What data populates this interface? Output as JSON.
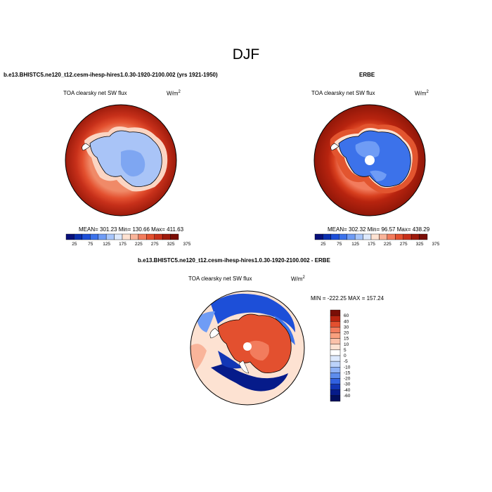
{
  "figure": {
    "title": "DJF"
  },
  "panels": [
    {
      "case": "b.e13.BHISTC5.ne120_t12.cesm-ihesp-hires1.0.30-1920-2100.002 (yrs 1921-1950)",
      "field": "TOA clearsky net SW flux",
      "units_base": "W/m",
      "units_exp": "2",
      "stats": "MEAN= 301.23  Min= 130.66  Max= 411.63"
    },
    {
      "case": "ERBE",
      "field": "TOA clearsky net SW flux",
      "units_base": "W/m",
      "units_exp": "2",
      "stats": "MEAN= 302.32  Min=  96.57  Max= 438.29"
    },
    {
      "case": "b.e13.BHISTC5.ne120_t12.cesm-ihesp-hires1.0.30-1920-2100.002 - ERBE",
      "field": "TOA clearsky net SW flux",
      "units_base": "W/m",
      "units_exp": "2",
      "stats": "MIN = -222.25 MAX = 157.24"
    }
  ],
  "colorbar_h": {
    "labels": [
      "25",
      "75",
      "125",
      "175",
      "225",
      "275",
      "325",
      "375"
    ],
    "colors": [
      "#08107a",
      "#0a2fb0",
      "#1d4fd8",
      "#3c72ea",
      "#6f9cf5",
      "#a8c6fb",
      "#dde9fd",
      "#fde2d2",
      "#f9b49a",
      "#f27c5d",
      "#e3502f",
      "#c7301a",
      "#9e1a0c",
      "#7a0e06"
    ]
  },
  "colorbar_v": {
    "labels": [
      "60",
      "40",
      "30",
      "20",
      "15",
      "10",
      "5",
      "0",
      "-5",
      "-10",
      "-15",
      "-20",
      "-30",
      "-40",
      "-60"
    ],
    "colors": [
      "#7a0e06",
      "#b82410",
      "#e3502f",
      "#f27c5d",
      "#f9a07e",
      "#fbc2aa",
      "#fde2d2",
      "#ffffff",
      "#dde9fd",
      "#bcd3fb",
      "#8fb2f6",
      "#5e8ded",
      "#3161e0",
      "#1236b5",
      "#061b8a",
      "#020f5e"
    ]
  },
  "colors": {
    "land_light": "#a9c4f7",
    "land_mid": "#7ea6f2",
    "ocean_hot": "#9a1a0b",
    "ice_hole": "#ffffff"
  }
}
